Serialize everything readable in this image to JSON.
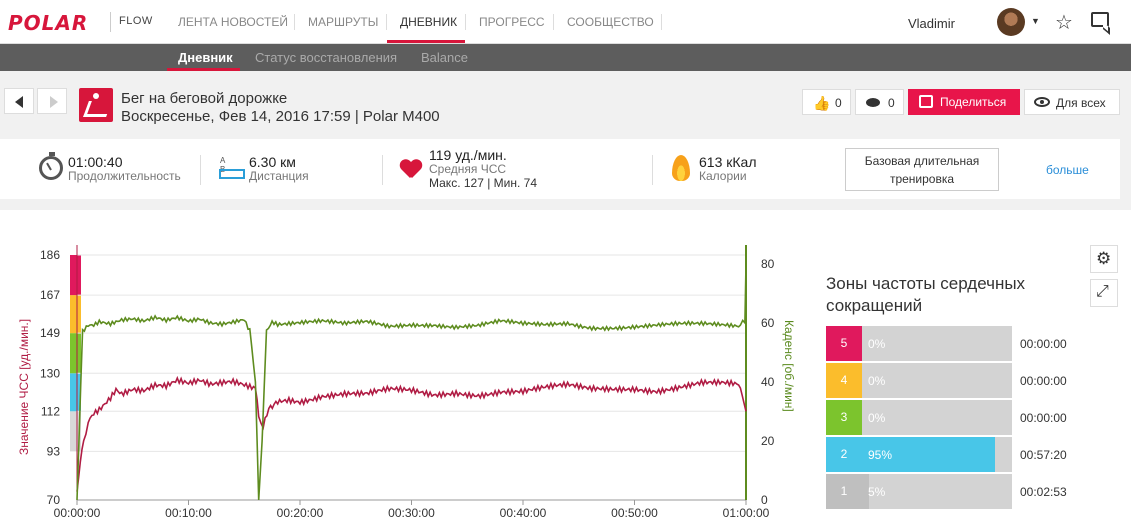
{
  "brand": {
    "logo": "POLAR",
    "product": "FLOW"
  },
  "nav": {
    "items": [
      {
        "label": "ЛЕНТА НОВОСТЕЙ"
      },
      {
        "label": "МАРШРУТЫ"
      },
      {
        "label": "ДНЕВНИК"
      },
      {
        "label": "ПРОГРЕСС"
      },
      {
        "label": "СООБЩЕСТВО"
      }
    ],
    "active": "ДНЕВНИК",
    "user": "Vladimir",
    "icons": [
      "avatar",
      "chevron-down-icon",
      "star-icon",
      "chat-icon"
    ]
  },
  "subnav": {
    "items": [
      {
        "label": "Дневник"
      },
      {
        "label": "Статус восстановления"
      },
      {
        "label": "Balance"
      }
    ],
    "active": "Дневник"
  },
  "session": {
    "title": "Бег на беговой дорожке",
    "subtitle": "Воскресенье, Фев 14, 2016 17:59 | Polar M400",
    "likes": "0",
    "comments": "0",
    "share_label": "Поделиться",
    "visibility_label": "Для всех"
  },
  "summary": {
    "duration": {
      "value": "01:00:40",
      "label": "Продолжительность"
    },
    "distance": {
      "value": "6.30 км",
      "label": "Дистанция",
      "icon_text": "A B"
    },
    "heart_rate": {
      "value": "119 уд./мин.",
      "label": "Средняя ЧСС",
      "minmax": "Макс. 127  |  Мин. 74"
    },
    "calories": {
      "value": "613 кКал",
      "label": "Калории"
    },
    "training_benefit": [
      "Базовая длительная",
      "тренировка"
    ],
    "more": "больше"
  },
  "chart_data": {
    "type": "line",
    "xlabel": "",
    "ylabel": "Значение ЧСС [уд./мин.]",
    "y2label": "Каденс [об./мин]",
    "x_ticks": [
      "00:00:00",
      "00:10:00",
      "00:20:00",
      "00:30:00",
      "00:40:00",
      "00:50:00",
      "01:00:00"
    ],
    "xlim_min": [
      0,
      60
    ],
    "y_ticks": [
      70,
      93,
      112,
      130,
      149,
      167,
      186
    ],
    "ylim": [
      70,
      186
    ],
    "y2_ticks": [
      0,
      20,
      40,
      60,
      80
    ],
    "y2lim": [
      0,
      83
    ],
    "zone_colors": [
      "#bfbfbf",
      "#48c6e8",
      "#7cc42d",
      "#fbbd2c",
      "#e0195d"
    ],
    "series": [
      {
        "name": "",
        "axis": "left",
        "color": "#b01c44",
        "x_min": [
          0,
          0.3,
          0.6,
          1,
          1.5,
          2,
          2.5,
          3,
          3.5,
          4,
          5,
          6,
          7,
          8,
          9,
          10,
          11,
          12,
          13,
          14,
          15,
          16,
          16.3,
          16.7,
          17.2,
          18,
          19,
          20,
          22,
          24,
          26,
          28,
          30,
          32,
          34,
          36,
          38,
          40,
          42,
          44,
          46,
          48,
          50,
          52,
          54,
          56,
          58,
          59.5,
          60
        ],
        "values": [
          74,
          88,
          100,
          108,
          112,
          114,
          117,
          120,
          124,
          122,
          124,
          123,
          125,
          124,
          126,
          124,
          125,
          123,
          124,
          125,
          124,
          123,
          112,
          104,
          112,
          118,
          119,
          118,
          120,
          120,
          119,
          121,
          121,
          120,
          122,
          121,
          122,
          121,
          122,
          123,
          122,
          123,
          124,
          123,
          124,
          125,
          124,
          123,
          112
        ]
      },
      {
        "name": "",
        "axis": "right",
        "color": "#5e8c1f",
        "x_min": [
          0,
          0.5,
          1,
          1.5,
          2,
          3,
          4,
          5,
          6,
          7,
          8,
          9,
          10,
          11,
          12,
          13,
          14,
          15,
          15.5,
          16,
          16.3,
          16.6,
          17.0,
          17.5,
          18,
          20,
          22,
          24,
          26,
          28,
          30,
          32,
          34,
          36,
          38,
          40,
          42,
          44,
          46,
          48,
          50,
          52,
          54,
          56,
          58,
          59.5,
          59.9,
          60
        ],
        "values": [
          0,
          58,
          60,
          60,
          61,
          60,
          61,
          61,
          60,
          61,
          60,
          61,
          60,
          61,
          60,
          60,
          61,
          62,
          58,
          40,
          0,
          20,
          58,
          61,
          60,
          60,
          60,
          59,
          60,
          59,
          60,
          60,
          59,
          59,
          60,
          59,
          59,
          60,
          59,
          59,
          59,
          59,
          59,
          59,
          59,
          59,
          60,
          80
        ]
      }
    ]
  },
  "zones": {
    "title": "Зоны частоты сердечных сокращений",
    "rows": [
      {
        "zone": "5",
        "color": "#e0195d",
        "pct": "0%",
        "fraction": 0.0,
        "time": "00:00:00"
      },
      {
        "zone": "4",
        "color": "#fbbd2c",
        "pct": "0%",
        "fraction": 0.0,
        "time": "00:00:00"
      },
      {
        "zone": "3",
        "color": "#7cc42d",
        "pct": "0%",
        "fraction": 0.0,
        "time": "00:00:00"
      },
      {
        "zone": "2",
        "color": "#48c6e8",
        "pct": "95%",
        "fraction": 0.95,
        "time": "00:57:20"
      },
      {
        "zone": "1",
        "color": "#bfbfbf",
        "pct": "5%",
        "fraction": 0.05,
        "time": "00:02:53"
      }
    ]
  }
}
